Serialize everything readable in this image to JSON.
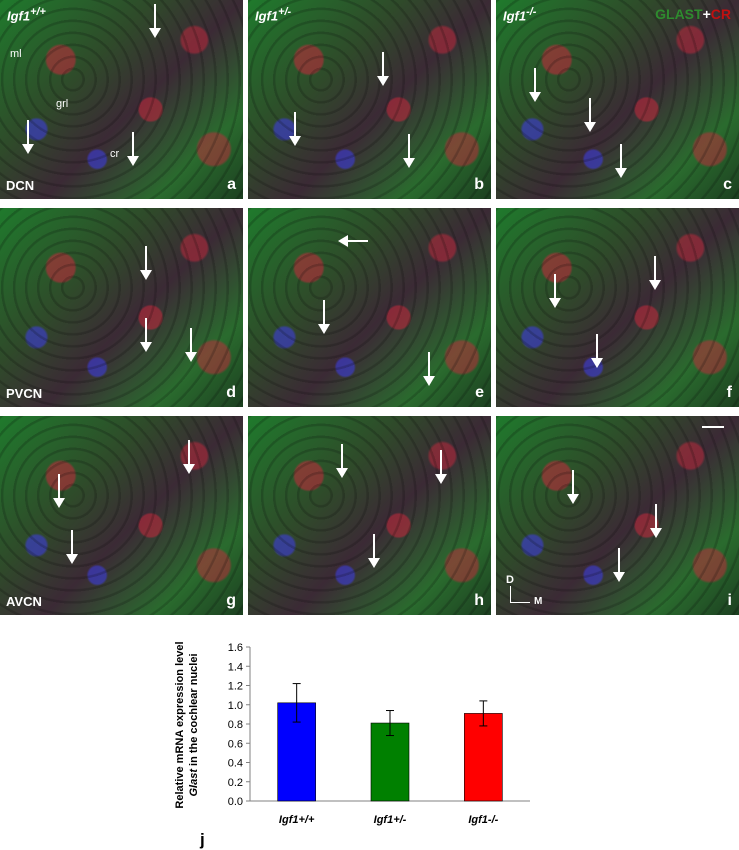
{
  "panels": {
    "col_headers": [
      "Igf1",
      "Igf1",
      "Igf1"
    ],
    "col_superscripts": [
      "+/+",
      "+/-",
      "-/-"
    ],
    "stain": {
      "green": "GLAST",
      "plus": "+",
      "red": "CR",
      "green_color": "#2e8b2e",
      "red_color": "#b01010"
    },
    "regions": [
      "DCN",
      "PVCN",
      "AVCN"
    ],
    "letters": [
      "a",
      "b",
      "c",
      "d",
      "e",
      "f",
      "g",
      "h",
      "i"
    ],
    "layer_labels": {
      "ml": "ml",
      "grl": "grl",
      "cr": "cr"
    },
    "orientation": {
      "dorsal": "D",
      "medial": "M"
    }
  },
  "chart_data": {
    "type": "bar",
    "panel_letter": "j",
    "categories": [
      "Igf1+/+",
      "Igf1+/-",
      "Igf1-/-"
    ],
    "values": [
      1.02,
      0.81,
      0.91
    ],
    "errors": [
      0.2,
      0.13,
      0.13
    ],
    "colors": [
      "#0000ff",
      "#008000",
      "#ff0000"
    ],
    "ylabel_line1": "Relative mRNA expression level",
    "ylabel_line2_italic": "Glast",
    "ylabel_line2_rest": " in the cochlear nuclei",
    "ylim": [
      0.0,
      1.6
    ],
    "yticks": [
      "0.0",
      "0.2",
      "0.4",
      "0.6",
      "0.8",
      "1.0",
      "1.2",
      "1.4",
      "1.6"
    ]
  }
}
